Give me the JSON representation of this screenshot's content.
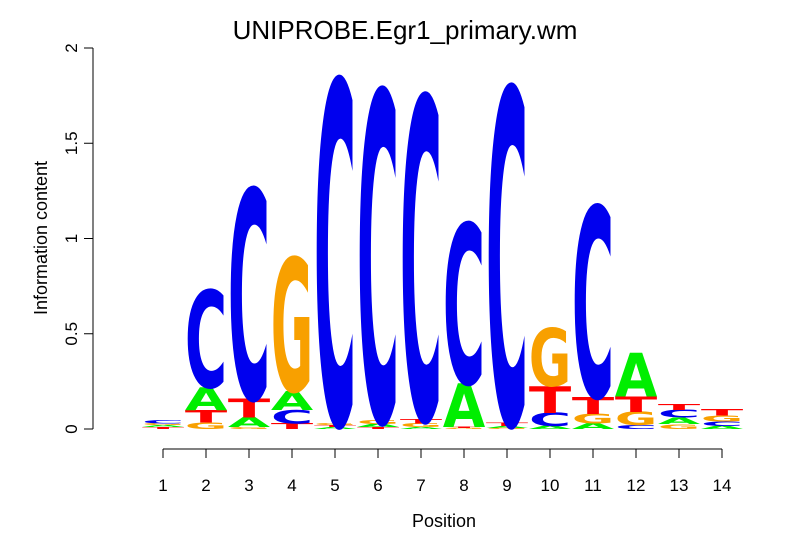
{
  "chart_data": {
    "type": "sequence-logo",
    "title": "UNIPROBE.Egr1_primary.wm",
    "xlabel": "Position",
    "ylabel": "Information content",
    "ylim": [
      0,
      2
    ],
    "yticks": [
      "0",
      "0.5",
      "1",
      "1.5",
      "2"
    ],
    "positions": [
      "1",
      "2",
      "3",
      "4",
      "5",
      "6",
      "7",
      "8",
      "9",
      "10",
      "11",
      "12",
      "13",
      "14"
    ],
    "colors": {
      "A": "#00ee00",
      "C": "#0000ee",
      "G": "#f8a000",
      "T": "#ff0000"
    },
    "stacks": [
      [
        [
          "T",
          0.01
        ],
        [
          "A",
          0.01
        ],
        [
          "G",
          0.01
        ],
        [
          "C",
          0.015
        ]
      ],
      [
        [
          "G",
          0.035
        ],
        [
          "T",
          0.065
        ],
        [
          "A",
          0.12
        ],
        [
          "C",
          0.51
        ]
      ],
      [
        [
          "G",
          0.01
        ],
        [
          "A",
          0.05
        ],
        [
          "T",
          0.1
        ],
        [
          "C",
          1.1
        ]
      ],
      [
        [
          "T",
          0.03
        ],
        [
          "C",
          0.07
        ],
        [
          "A",
          0.1
        ],
        [
          "G",
          0.7
        ]
      ],
      [
        [
          "A",
          0.01
        ],
        [
          "T",
          0.01
        ],
        [
          "G",
          0.01
        ],
        [
          "C",
          1.8
        ]
      ],
      [
        [
          "T",
          0.01
        ],
        [
          "A",
          0.015
        ],
        [
          "G",
          0.02
        ],
        [
          "C",
          1.73
        ]
      ],
      [
        [
          "A",
          0.01
        ],
        [
          "G",
          0.02
        ],
        [
          "T",
          0.025
        ],
        [
          "C",
          1.69
        ]
      ],
      [
        [
          "G",
          0.005
        ],
        [
          "T",
          0.005
        ],
        [
          "A",
          0.23
        ],
        [
          "C",
          0.84
        ]
      ],
      [
        [
          "G",
          0.005
        ],
        [
          "A",
          0.01
        ],
        [
          "T",
          0.015
        ],
        [
          "C",
          1.76
        ]
      ],
      [
        [
          "A",
          0.015
        ],
        [
          "C",
          0.07
        ],
        [
          "T",
          0.14
        ],
        [
          "G",
          0.305
        ]
      ],
      [
        [
          "A",
          0.03
        ],
        [
          "G",
          0.05
        ],
        [
          "T",
          0.09
        ],
        [
          "C",
          1.0
        ]
      ],
      [
        [
          "C",
          0.02
        ],
        [
          "G",
          0.07
        ],
        [
          "T",
          0.08
        ],
        [
          "A",
          0.23
        ]
      ],
      [
        [
          "G",
          0.025
        ],
        [
          "A",
          0.035
        ],
        [
          "C",
          0.04
        ],
        [
          "T",
          0.03
        ]
      ],
      [
        [
          "A",
          0.015
        ],
        [
          "C",
          0.025
        ],
        [
          "G",
          0.03
        ],
        [
          "T",
          0.035
        ]
      ]
    ]
  }
}
